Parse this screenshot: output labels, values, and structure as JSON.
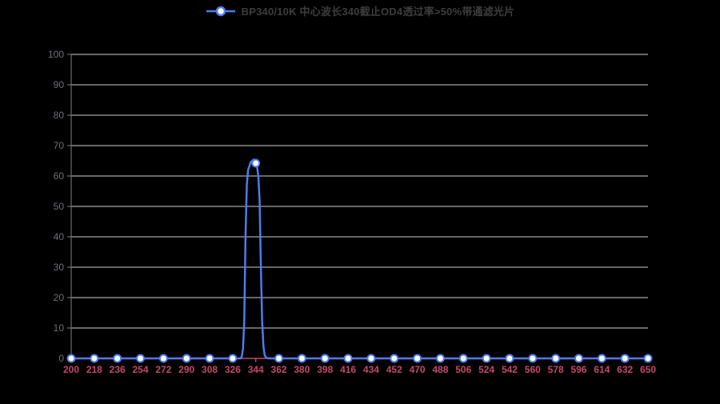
{
  "colors": {
    "background": "#000000",
    "series_line": "#4e7cf0",
    "marker_fill": "#ffffff",
    "x_axis": "#c6496a",
    "x_label": "#c6496a",
    "y_axis": "#7b7f87",
    "y_label": "#6e7079",
    "grid": "#cfcfcf",
    "legend_text": "#3d3d3d"
  },
  "chart_data": {
    "type": "line",
    "title": "",
    "legend": "BP340/10K 中心波长340截止OD4透过率>50%带通滤光片",
    "legend_position": "top-center",
    "xlabel": "",
    "ylabel": "",
    "grid": true,
    "ylim": [
      0,
      100
    ],
    "y_ticks": [
      0,
      10,
      20,
      30,
      40,
      50,
      60,
      70,
      80,
      90,
      100
    ],
    "x_categories": [
      200,
      218,
      236,
      254,
      272,
      290,
      308,
      326,
      344,
      362,
      380,
      398,
      416,
      434,
      452,
      470,
      488,
      506,
      524,
      542,
      560,
      578,
      596,
      614,
      632,
      650
    ],
    "series": [
      {
        "name": "BP340/10K 中心波长340截止OD4透过率>50%带通滤光片",
        "peak_center_nm": 344,
        "peak_max_percent": 64.2,
        "marker_points": [
          [
            200,
            0
          ],
          [
            218,
            0
          ],
          [
            236,
            0
          ],
          [
            254,
            0
          ],
          [
            272,
            0
          ],
          [
            290,
            0
          ],
          [
            308,
            0
          ],
          [
            326,
            0
          ],
          [
            344,
            64.2
          ],
          [
            362,
            0
          ],
          [
            380,
            0
          ],
          [
            398,
            0
          ],
          [
            416,
            0
          ],
          [
            434,
            0
          ],
          [
            452,
            0
          ],
          [
            470,
            0
          ],
          [
            488,
            0
          ],
          [
            506,
            0
          ],
          [
            524,
            0
          ],
          [
            542,
            0
          ],
          [
            560,
            0
          ],
          [
            578,
            0
          ],
          [
            596,
            0
          ],
          [
            614,
            0
          ],
          [
            632,
            0
          ],
          [
            650,
            0
          ]
        ],
        "line_points": [
          [
            200,
            0
          ],
          [
            218,
            0
          ],
          [
            236,
            0
          ],
          [
            254,
            0
          ],
          [
            272,
            0
          ],
          [
            290,
            0
          ],
          [
            308,
            0
          ],
          [
            326,
            0
          ],
          [
            330,
            0
          ],
          [
            332,
            0
          ],
          [
            333,
            0.5
          ],
          [
            334,
            3
          ],
          [
            335,
            12
          ],
          [
            336,
            40
          ],
          [
            337,
            57
          ],
          [
            338,
            62
          ],
          [
            340,
            64.5
          ],
          [
            342,
            65.3
          ],
          [
            343,
            65.4
          ],
          [
            344,
            64.2
          ],
          [
            345,
            63
          ],
          [
            346,
            60
          ],
          [
            347,
            52
          ],
          [
            348,
            30
          ],
          [
            349,
            12
          ],
          [
            350,
            4
          ],
          [
            351,
            1
          ],
          [
            352,
            0.3
          ],
          [
            354,
            0
          ],
          [
            362,
            0
          ],
          [
            380,
            0
          ],
          [
            398,
            0
          ],
          [
            416,
            0
          ],
          [
            434,
            0
          ],
          [
            452,
            0
          ],
          [
            470,
            0
          ],
          [
            488,
            0
          ],
          [
            506,
            0
          ],
          [
            524,
            0
          ],
          [
            542,
            0
          ],
          [
            560,
            0
          ],
          [
            578,
            0
          ],
          [
            596,
            0
          ],
          [
            614,
            0
          ],
          [
            632,
            0
          ],
          [
            650,
            0
          ]
        ]
      }
    ]
  }
}
